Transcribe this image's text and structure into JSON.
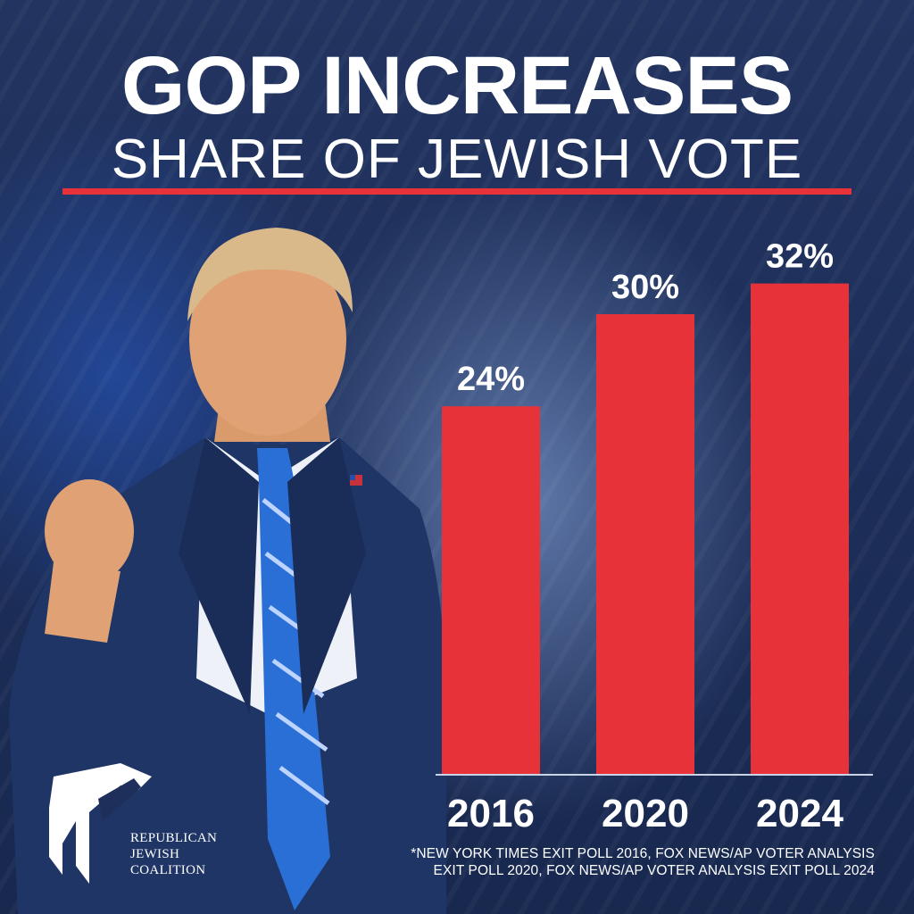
{
  "header": {
    "title": "GOP INCREASES",
    "subtitle": "SHARE OF JEWISH VOTE"
  },
  "colors": {
    "bar": "#e8323a",
    "accent_underline": "#e8323a",
    "background": "#1d2f5a",
    "text": "#ffffff"
  },
  "chart_data": {
    "type": "bar",
    "categories": [
      "2016",
      "2020",
      "2024"
    ],
    "values": [
      24,
      30,
      32
    ],
    "value_labels": [
      "24%",
      "30%",
      "32%"
    ],
    "ylim": [
      0,
      35
    ],
    "grid": false
  },
  "logo": {
    "line1": "REPUBLICAN",
    "line2": "JEWISH",
    "line3": "COALITION"
  },
  "footnote": {
    "line1": "*NEW YORK TIMES EXIT POLL 2016, FOX NEWS/AP VOTER ANALYSIS",
    "line2": "EXIT POLL 2020, FOX NEWS/AP VOTER ANALYSIS EXIT POLL 2024"
  }
}
